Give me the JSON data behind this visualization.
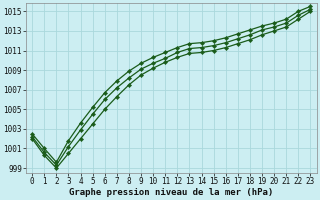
{
  "xlabel": "Graphe pression niveau de la mer (hPa)",
  "bg_color": "#cceef2",
  "grid_color": "#aad8dc",
  "line_color": "#1a5c1a",
  "xlim_min": -0.5,
  "xlim_max": 23.5,
  "ylim_min": 998.5,
  "ylim_max": 1015.8,
  "yticks": [
    999,
    1001,
    1003,
    1005,
    1007,
    1009,
    1011,
    1013,
    1015
  ],
  "xticks": [
    0,
    1,
    2,
    3,
    4,
    5,
    6,
    7,
    8,
    9,
    10,
    11,
    12,
    13,
    14,
    15,
    16,
    17,
    18,
    19,
    20,
    21,
    22,
    23
  ],
  "line1": [
    1002.0,
    1000.3,
    999.0,
    1000.5,
    1002.0,
    1003.5,
    1005.0,
    1006.3,
    1007.5,
    1008.5,
    1009.2,
    1009.8,
    1010.3,
    1010.7,
    1010.8,
    1011.0,
    1011.3,
    1011.7,
    1012.1,
    1012.6,
    1013.0,
    1013.4,
    1014.2,
    1015.0
  ],
  "line2": [
    1002.2,
    1000.6,
    999.3,
    1001.2,
    1002.9,
    1004.5,
    1006.0,
    1007.2,
    1008.2,
    1009.1,
    1009.7,
    1010.2,
    1010.8,
    1011.2,
    1011.3,
    1011.5,
    1011.8,
    1012.2,
    1012.6,
    1013.1,
    1013.4,
    1013.8,
    1014.6,
    1015.2
  ],
  "line3": [
    1002.5,
    1001.0,
    999.6,
    1001.8,
    1003.6,
    1005.2,
    1006.7,
    1007.9,
    1008.9,
    1009.7,
    1010.3,
    1010.8,
    1011.3,
    1011.7,
    1011.8,
    1012.0,
    1012.3,
    1012.7,
    1013.1,
    1013.5,
    1013.8,
    1014.2,
    1015.0,
    1015.5
  ],
  "xlabel_fontsize": 6.5,
  "tick_fontsize": 5.5,
  "linewidth": 0.9,
  "markersize": 2.2
}
